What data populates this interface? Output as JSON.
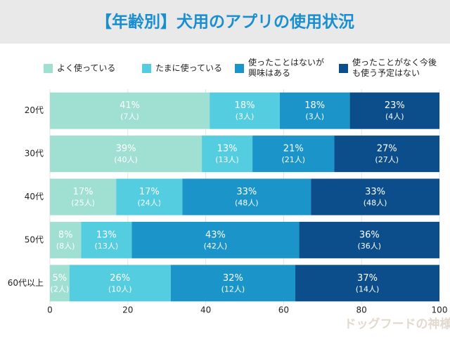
{
  "chart_data": {
    "type": "stacked_barh",
    "title": "【年齢別】犬用のアプリの使用状況",
    "categories": [
      "20代",
      "30代",
      "40代",
      "50代",
      "60代以上"
    ],
    "series": [
      {
        "name": "よく使っている",
        "color": "#9fe0d2",
        "values": [
          41,
          39,
          17,
          8,
          5
        ],
        "value_labels": [
          "41%",
          "39%",
          "17%",
          "8%",
          "5%"
        ],
        "counts": [
          7,
          40,
          25,
          8,
          2
        ],
        "count_labels": [
          "(7人)",
          "(40人)",
          "(25人)",
          "(8人)",
          "(2人)"
        ]
      },
      {
        "name": "たまに使っている",
        "color": "#55cde0",
        "values": [
          18,
          13,
          17,
          13,
          26
        ],
        "value_labels": [
          "18%",
          "13%",
          "17%",
          "13%",
          "26%"
        ],
        "counts": [
          3,
          13,
          24,
          13,
          10
        ],
        "count_labels": [
          "(3人)",
          "(13人)",
          "(24人)",
          "(13人)",
          "(10人)"
        ]
      },
      {
        "name": "使ったことはないが興味はある",
        "color": "#1b95c9",
        "values": [
          18,
          21,
          33,
          43,
          32
        ],
        "value_labels": [
          "18%",
          "21%",
          "33%",
          "43%",
          "32%"
        ],
        "counts": [
          3,
          21,
          48,
          42,
          12
        ],
        "count_labels": [
          "(3人)",
          "(21人)",
          "(48人)",
          "(42人)",
          "(12人)"
        ]
      },
      {
        "name": "使ったことがなく今後も使う予定はない",
        "color": "#0b4e8b",
        "values": [
          23,
          27,
          33,
          36,
          37
        ],
        "value_labels": [
          "23%",
          "27%",
          "33%",
          "36%",
          "37%"
        ],
        "counts": [
          4,
          27,
          48,
          36,
          14
        ],
        "count_labels": [
          "(4人)",
          "(27人)",
          "(48人)",
          "(36人)",
          "(14人)"
        ]
      }
    ],
    "xlim": [
      0,
      100
    ],
    "xticks": [
      0,
      20,
      40,
      60,
      80,
      100
    ],
    "grid": true,
    "watermark": "ドッグフードの神様"
  }
}
